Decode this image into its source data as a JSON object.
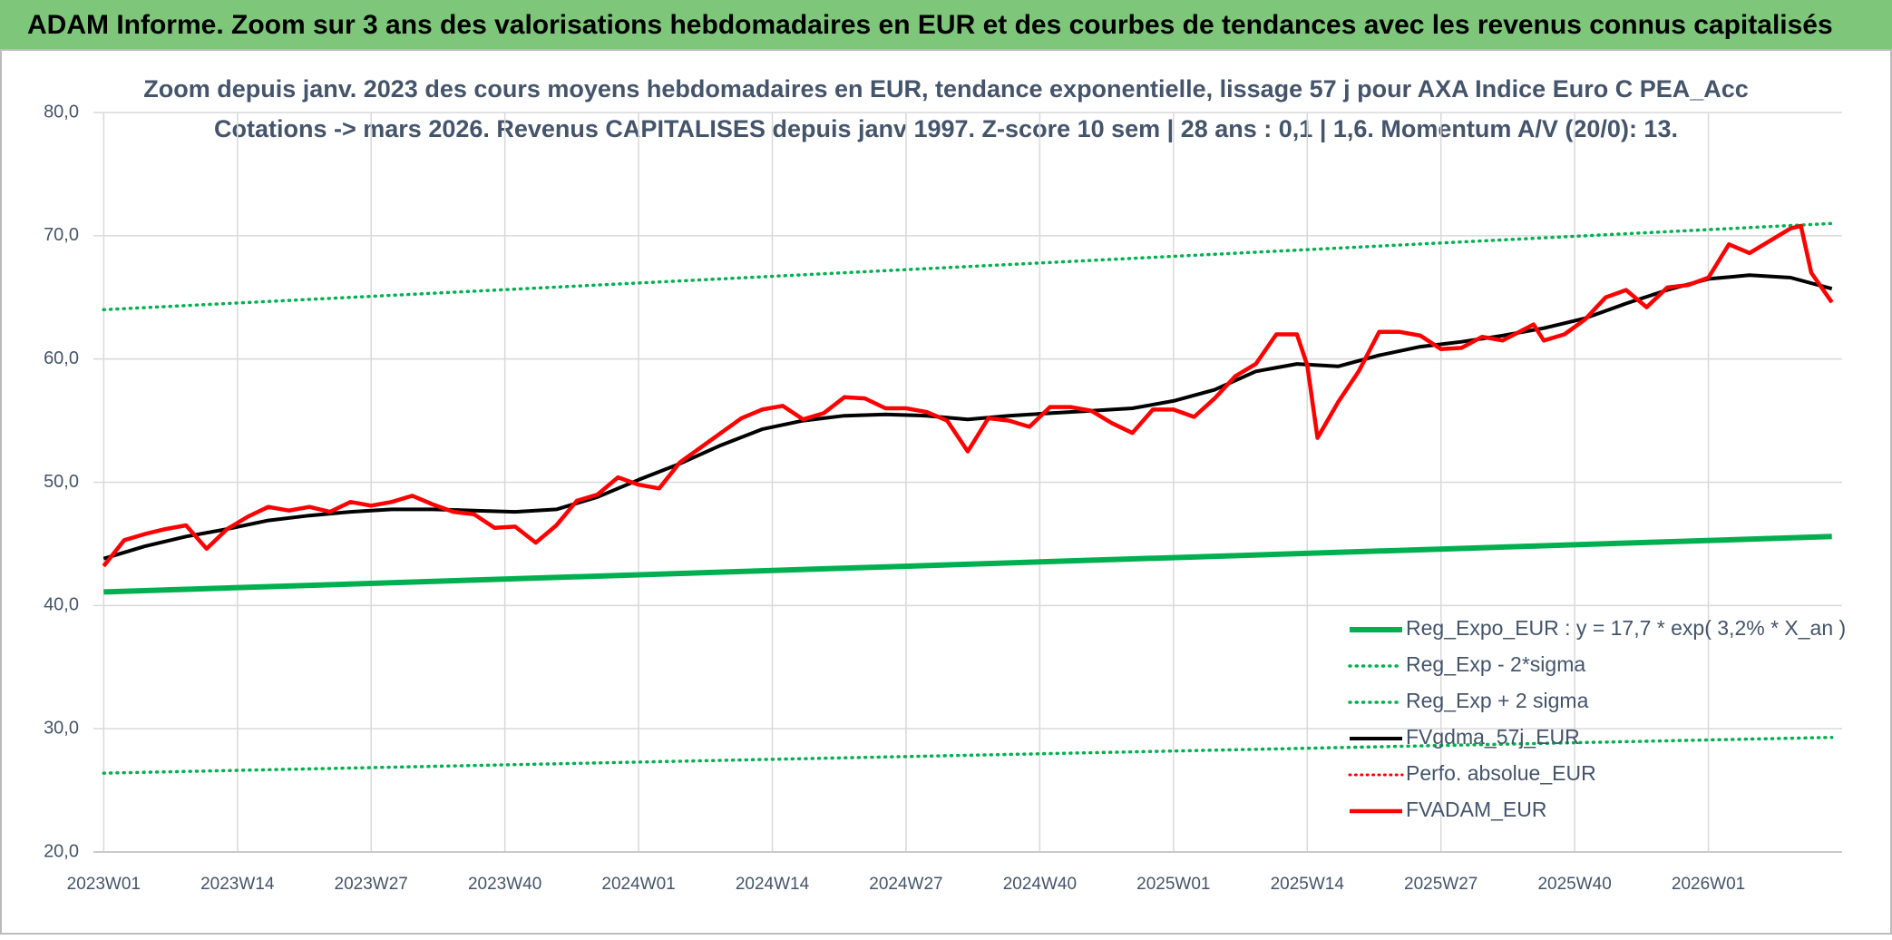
{
  "header": {
    "title": "ADAM Informe. Zoom sur 3 ans des valorisations hebdomadaires en EUR et des courbes de tendances avec les revenus connus capitalisés"
  },
  "chart_data": {
    "type": "line",
    "title": "Zoom depuis janv. 2023 des cours moyens hebdomadaires en EUR, tendance exponentielle, lissage 57 j pour AXA Indice Euro C PEA_Acc",
    "subtitle": "Cotations -> mars 2026. Revenus CAPITALISES depuis janv 1997. Z-score 10 sem | 28 ans : 0,1 | 1,6. Momentum A/V (20/0): 13.",
    "xlim": [
      -1,
      169
    ],
    "xticks": [
      {
        "value": 0,
        "label": "2023W01"
      },
      {
        "value": 13,
        "label": "2023W14"
      },
      {
        "value": 26,
        "label": "2023W27"
      },
      {
        "value": 39,
        "label": "2023W40"
      },
      {
        "value": 52,
        "label": "2024W01"
      },
      {
        "value": 65,
        "label": "2024W14"
      },
      {
        "value": 78,
        "label": "2024W27"
      },
      {
        "value": 91,
        "label": "2024W40"
      },
      {
        "value": 104,
        "label": "2025W01"
      },
      {
        "value": 117,
        "label": "2025W14"
      },
      {
        "value": 130,
        "label": "2025W27"
      },
      {
        "value": 143,
        "label": "2025W40"
      },
      {
        "value": 156,
        "label": "2026W01"
      }
    ],
    "ylim": [
      20,
      80
    ],
    "yticks": [
      {
        "value": 20,
        "label": "20,0"
      },
      {
        "value": 30,
        "label": "30,0"
      },
      {
        "value": 40,
        "label": "40,0"
      },
      {
        "value": 50,
        "label": "50,0"
      },
      {
        "value": 60,
        "label": "60,0"
      },
      {
        "value": 70,
        "label": "70,0"
      },
      {
        "value": 80,
        "label": "80,0"
      }
    ],
    "grid": true,
    "legend": "lower right",
    "series": [
      {
        "name": "Reg_Expo_EUR : y = 17,7 * exp( 3,2% *  X_an )",
        "color": "#00b050",
        "style": "solid",
        "width": 6,
        "x": [
          0,
          168
        ],
        "values": [
          41.1,
          45.6
        ]
      },
      {
        "name": "Reg_Exp - 2*sigma",
        "color": "#00b050",
        "style": "dotted",
        "width": 3.5,
        "x": [
          0,
          168
        ],
        "values": [
          26.4,
          29.3
        ]
      },
      {
        "name": "Reg_Exp + 2 sigma",
        "color": "#00b050",
        "style": "dotted",
        "width": 3.5,
        "x": [
          0,
          168
        ],
        "values": [
          64.0,
          71.0
        ]
      },
      {
        "name": "FVgdma_57j_EUR",
        "color": "#000000",
        "style": "solid",
        "width": 4,
        "x": [
          0,
          4,
          8,
          12,
          16,
          20,
          24,
          28,
          32,
          36,
          40,
          44,
          48,
          52,
          56,
          60,
          64,
          68,
          72,
          76,
          80,
          84,
          88,
          92,
          96,
          100,
          104,
          108,
          112,
          116,
          120,
          124,
          128,
          132,
          136,
          140,
          144,
          148,
          152,
          156,
          160,
          164,
          168
        ],
        "values": [
          43.8,
          44.8,
          45.6,
          46.2,
          46.9,
          47.3,
          47.6,
          47.8,
          47.8,
          47.7,
          47.6,
          47.8,
          48.8,
          50.2,
          51.5,
          53.0,
          54.3,
          55.0,
          55.4,
          55.5,
          55.4,
          55.1,
          55.4,
          55.6,
          55.8,
          56.0,
          56.6,
          57.5,
          59.0,
          59.6,
          59.4,
          60.3,
          61.0,
          61.4,
          61.9,
          62.5,
          63.3,
          64.5,
          65.6,
          66.5,
          66.8,
          66.6,
          65.7
        ]
      },
      {
        "name": "Perfo. absolue_EUR",
        "color": "#ff0000",
        "style": "dotted",
        "width": 3,
        "x": [],
        "values": []
      },
      {
        "name": "FVADAM_EUR",
        "color": "#ff0000",
        "style": "solid",
        "width": 4.5,
        "x": [
          0,
          2,
          4,
          6,
          8,
          10,
          12,
          14,
          16,
          18,
          20,
          22,
          24,
          26,
          28,
          30,
          32,
          34,
          36,
          38,
          40,
          42,
          44,
          46,
          48,
          50,
          52,
          54,
          56,
          58,
          60,
          62,
          64,
          66,
          68,
          70,
          72,
          74,
          76,
          78,
          80,
          82,
          84,
          86,
          88,
          90,
          92,
          94,
          96,
          98,
          100,
          102,
          104,
          106,
          108,
          110,
          112,
          114,
          116,
          117,
          118,
          120,
          122,
          124,
          126,
          128,
          130,
          132,
          134,
          136,
          139,
          140,
          142,
          144,
          146,
          148,
          150,
          152,
          154,
          156,
          158,
          160,
          162,
          164,
          165,
          166,
          168
        ],
        "values": [
          43.2,
          45.3,
          45.8,
          46.2,
          46.5,
          44.6,
          46.2,
          47.2,
          48.0,
          47.7,
          48.0,
          47.6,
          48.4,
          48.1,
          48.4,
          48.9,
          48.2,
          47.6,
          47.4,
          46.3,
          46.4,
          45.1,
          46.5,
          48.5,
          49.0,
          50.4,
          49.8,
          49.5,
          51.6,
          52.8,
          54.0,
          55.2,
          55.9,
          56.2,
          55.1,
          55.6,
          56.9,
          56.8,
          56.0,
          56.0,
          55.7,
          55.0,
          52.5,
          55.2,
          55.0,
          54.5,
          56.1,
          56.1,
          55.8,
          54.8,
          54.0,
          55.9,
          55.9,
          55.3,
          56.8,
          58.6,
          59.6,
          62.0,
          62.0,
          59.5,
          53.6,
          56.5,
          59.0,
          62.2,
          62.2,
          61.9,
          60.8,
          60.9,
          61.8,
          61.5,
          62.8,
          61.5,
          62.0,
          63.2,
          65.0,
          65.6,
          64.2,
          65.8,
          66.0,
          66.6,
          69.3,
          68.6,
          69.6,
          70.6,
          70.8,
          67.0,
          64.6
        ]
      }
    ]
  }
}
